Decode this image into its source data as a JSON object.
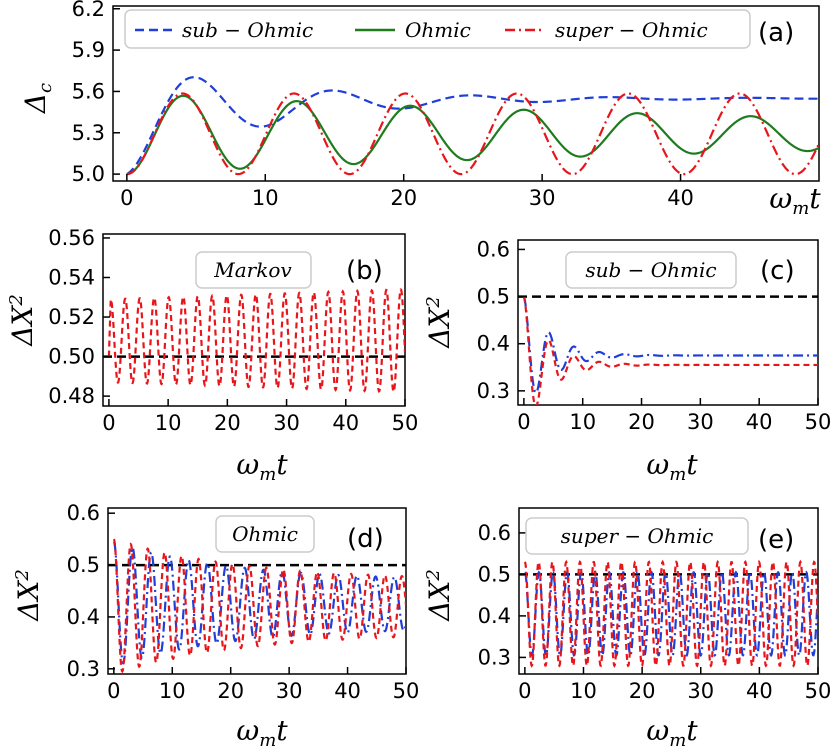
{
  "chart_data": [
    {
      "id": "a",
      "type": "line",
      "panel_label": "(a)",
      "xlabel": "ω_m t",
      "ylabel": "Δ_c",
      "xlim": [
        -1,
        50
      ],
      "ylim": [
        4.95,
        6.22
      ],
      "xticks": [
        0,
        10,
        20,
        30,
        40
      ],
      "xtick_labels": [
        "0",
        "10",
        "20",
        "30",
        "40"
      ],
      "yticks": [
        5.0,
        5.3,
        5.6,
        5.9,
        6.2
      ],
      "ytick_labels": [
        "5.0",
        "5.3",
        "5.6",
        "5.9",
        "6.2"
      ],
      "legend_position": "top",
      "series": [
        {
          "name": "sub − Ohmic",
          "color": "#1f3fd8",
          "dash": "9,5",
          "model": {
            "kind": "decay",
            "base": 5.0,
            "target": 5.58,
            "amp": 0.8,
            "decay": 0.1,
            "period": 10.0
          }
        },
        {
          "name": "Ohmic",
          "color": "#1e7b1e",
          "dash": "",
          "model": {
            "kind": "decay",
            "base": 5.0,
            "target": 5.3,
            "amp": 0.59,
            "decay": 0.018,
            "period": 8.2
          }
        },
        {
          "name": "super − Ohmic",
          "color": "#e8161b",
          "dash": "10,4,2,4",
          "model": {
            "kind": "decay",
            "base": 5.0,
            "target": 5.3,
            "amp": 0.585,
            "decay": 0.0,
            "period": 8.05
          }
        }
      ]
    },
    {
      "id": "b",
      "type": "line",
      "panel_label": "(b)",
      "box_label": "Markov",
      "xlabel": "ω_m t",
      "ylabel": "ΔX²",
      "xlim": [
        -1,
        50
      ],
      "ylim": [
        0.475,
        0.562
      ],
      "xticks": [
        0,
        10,
        20,
        30,
        40,
        50
      ],
      "xtick_labels": [
        "0",
        "10",
        "20",
        "30",
        "40",
        "50"
      ],
      "yticks": [
        0.48,
        0.5,
        0.52,
        0.54,
        0.56
      ],
      "ytick_labels": [
        "0.48",
        "0.50",
        "0.52",
        "0.54",
        "0.56"
      ],
      "reference_line": 0.5,
      "series": [
        {
          "name": "Markov",
          "color": "#e8161b",
          "dash": "6,4",
          "model": {
            "kind": "osc",
            "center": 0.508,
            "amp0": 0.021,
            "amp1": 0.026,
            "period": 2.45,
            "start": 0.5
          }
        }
      ]
    },
    {
      "id": "c",
      "type": "line",
      "panel_label": "(c)",
      "box_label": "sub − Ohmic",
      "xlabel": "ω_m t",
      "ylabel": "ΔX²",
      "xlim": [
        -1,
        50
      ],
      "ylim": [
        0.27,
        0.62
      ],
      "xticks": [
        0,
        10,
        20,
        30,
        40,
        50
      ],
      "xtick_labels": [
        "0",
        "10",
        "20",
        "30",
        "40",
        "50"
      ],
      "yticks": [
        0.3,
        0.4,
        0.5,
        0.6
      ],
      "ytick_labels": [
        "0.3",
        "0.4",
        "0.5",
        "0.6"
      ],
      "reference_line": 0.5,
      "series": [
        {
          "name": "sub − Ohmic (blue)",
          "color": "#1f3fd8",
          "dash": "10,4,2,4",
          "model": {
            "kind": "damp",
            "start": 0.5,
            "settle": 0.375,
            "amp": 0.23,
            "decay": 0.22,
            "period": 4.3
          }
        },
        {
          "name": "sub − Ohmic (red)",
          "color": "#e8161b",
          "dash": "6,4",
          "model": {
            "kind": "damp",
            "start": 0.5,
            "settle": 0.355,
            "amp": 0.25,
            "decay": 0.24,
            "period": 4.3
          }
        }
      ]
    },
    {
      "id": "d",
      "type": "line",
      "panel_label": "(d)",
      "box_label": "Ohmic",
      "xlabel": "ω_m t",
      "ylabel": "ΔX²",
      "xlim": [
        -1,
        50
      ],
      "ylim": [
        0.29,
        0.61
      ],
      "xticks": [
        0,
        10,
        20,
        30,
        40,
        50
      ],
      "xtick_labels": [
        "0",
        "10",
        "20",
        "30",
        "40",
        "50"
      ],
      "yticks": [
        0.3,
        0.4,
        0.5,
        0.6
      ],
      "ytick_labels": [
        "0.3",
        "0.4",
        "0.5",
        "0.6"
      ],
      "reference_line": 0.5,
      "series": [
        {
          "name": "Ohmic (blue)",
          "color": "#1f3fd8",
          "dash": "10,4,2,4",
          "model": {
            "kind": "damposc",
            "start": 0.5,
            "settle": 0.425,
            "amp": 0.12,
            "ampEnd": 0.045,
            "decay": 0.05,
            "period": 3.2
          }
        },
        {
          "name": "Ohmic (red)",
          "color": "#e8161b",
          "dash": "6,4",
          "model": {
            "kind": "damposc",
            "start": 0.5,
            "settle": 0.42,
            "amp": 0.13,
            "ampEnd": 0.05,
            "decay": 0.045,
            "period": 2.9
          }
        }
      ]
    },
    {
      "id": "e",
      "type": "line",
      "panel_label": "(e)",
      "box_label": "super − Ohmic",
      "xlabel": "ω_m t",
      "ylabel": "ΔX²",
      "xlim": [
        -1,
        50
      ],
      "ylim": [
        0.26,
        0.66
      ],
      "xticks": [
        0,
        10,
        20,
        30,
        40,
        50
      ],
      "xtick_labels": [
        "0",
        "10",
        "20",
        "30",
        "40",
        "50"
      ],
      "yticks": [
        0.3,
        0.4,
        0.5,
        0.6
      ],
      "ytick_labels": [
        "0.3",
        "0.4",
        "0.5",
        "0.6"
      ],
      "reference_line": 0.5,
      "series": [
        {
          "name": "super − Ohmic (blue)",
          "color": "#1f3fd8",
          "dash": "10,4,2,4",
          "model": {
            "kind": "osc2",
            "center": 0.405,
            "amp": 0.1,
            "period": 2.4
          }
        },
        {
          "name": "super − Ohmic (red)",
          "color": "#e8161b",
          "dash": "6,4",
          "model": {
            "kind": "osc2",
            "center": 0.405,
            "amp": 0.125,
            "period": 2.35
          }
        }
      ]
    }
  ]
}
